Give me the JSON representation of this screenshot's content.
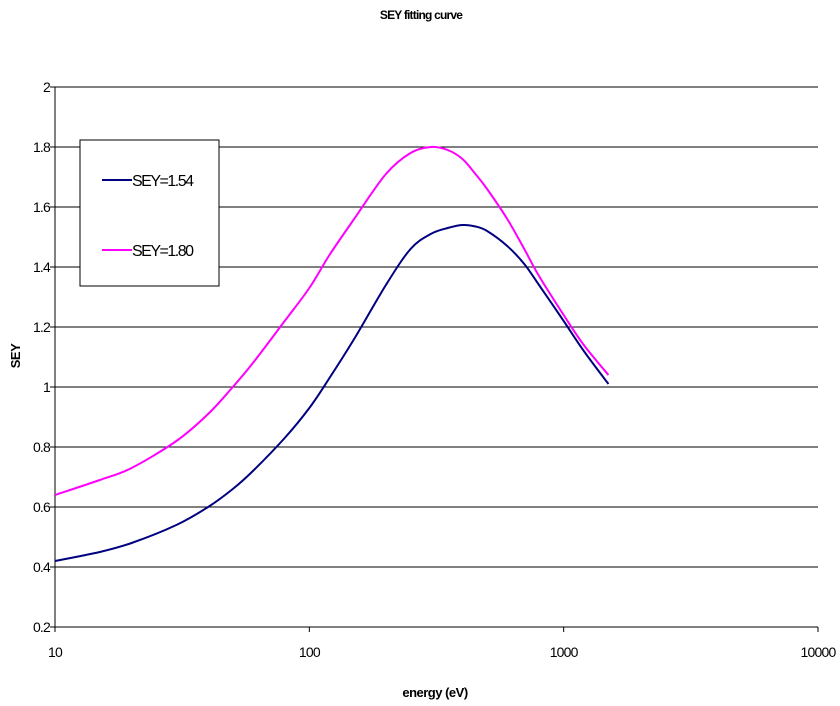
{
  "chart_data": {
    "type": "line",
    "title": "SEY fitting curve",
    "xlabel": "energy (eV)",
    "ylabel": "SEY",
    "x_scale": "log",
    "xlim": [
      10,
      10000
    ],
    "ylim": [
      0.2,
      2
    ],
    "x_ticks": [
      "10",
      "100",
      "1000",
      "10000"
    ],
    "y_ticks": [
      "0.2",
      "0.4",
      "0.6",
      "0.8",
      "1",
      "1.2",
      "1.4",
      "1.6",
      "1.8",
      "2"
    ],
    "grid": "horizontal",
    "legend_position": "top-left",
    "series": [
      {
        "name": "SEY=1.54",
        "color": "#000080",
        "x": [
          10,
          15,
          20,
          30,
          40,
          50,
          60,
          80,
          100,
          120,
          150,
          200,
          250,
          300,
          350,
          400,
          450,
          500,
          600,
          700,
          800,
          1000,
          1200,
          1500
        ],
        "y": [
          0.42,
          0.45,
          0.48,
          0.54,
          0.6,
          0.66,
          0.72,
          0.83,
          0.93,
          1.03,
          1.16,
          1.34,
          1.46,
          1.51,
          1.53,
          1.54,
          1.535,
          1.52,
          1.47,
          1.41,
          1.34,
          1.22,
          1.12,
          1.01
        ]
      },
      {
        "name": "SEY=1.80",
        "color": "#ff00ff",
        "x": [
          10,
          15,
          20,
          30,
          40,
          50,
          60,
          80,
          100,
          120,
          150,
          200,
          250,
          300,
          350,
          400,
          450,
          500,
          600,
          700,
          800,
          1000,
          1200,
          1500
        ],
        "y": [
          0.64,
          0.69,
          0.73,
          0.82,
          0.91,
          1.0,
          1.08,
          1.22,
          1.33,
          1.44,
          1.56,
          1.71,
          1.78,
          1.8,
          1.79,
          1.76,
          1.71,
          1.66,
          1.56,
          1.46,
          1.37,
          1.24,
          1.14,
          1.04
        ]
      }
    ]
  }
}
